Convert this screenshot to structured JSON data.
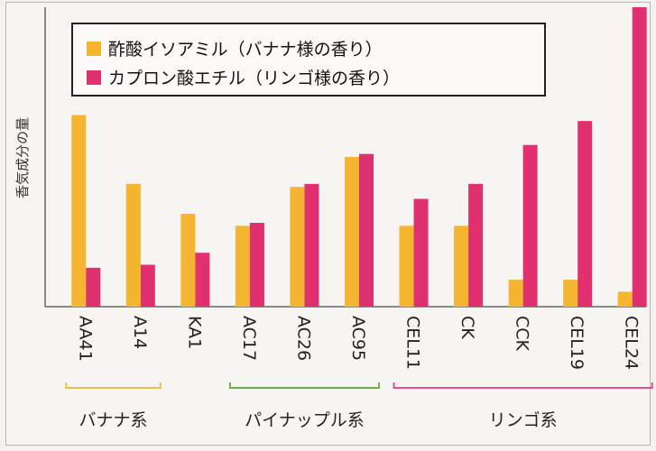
{
  "chart_data": {
    "type": "bar",
    "ylabel": "香気成分の量",
    "categories": [
      "AA41",
      "A14",
      "KA1",
      "AC17",
      "AC26",
      "AC95",
      "CEL11",
      "CK",
      "CCK",
      "CEL19",
      "CEL24"
    ],
    "ylim": [
      0,
      100
    ],
    "grid": false,
    "legend_position": "top",
    "series": [
      {
        "name": "酢酸イソアミル（バナナ様の香り）",
        "color": "#f5b530",
        "values": [
          64,
          41,
          31,
          27,
          40,
          50,
          27,
          27,
          9,
          9,
          5
        ]
      },
      {
        "name": "カプロン酸エチル（リンゴ様の香り）",
        "color": "#e0306f",
        "values": [
          13,
          14,
          18,
          28,
          41,
          51,
          36,
          41,
          54,
          62,
          100
        ]
      }
    ],
    "groups": [
      {
        "label": "バナナ系",
        "color": "#e6c24a",
        "from": 0,
        "to": 1
      },
      {
        "label": "パイナップル系",
        "color": "#6fae55",
        "from": 3,
        "to": 5
      },
      {
        "label": "リンゴ系",
        "color": "#e04f8e",
        "from": 6,
        "to": 10
      }
    ]
  }
}
